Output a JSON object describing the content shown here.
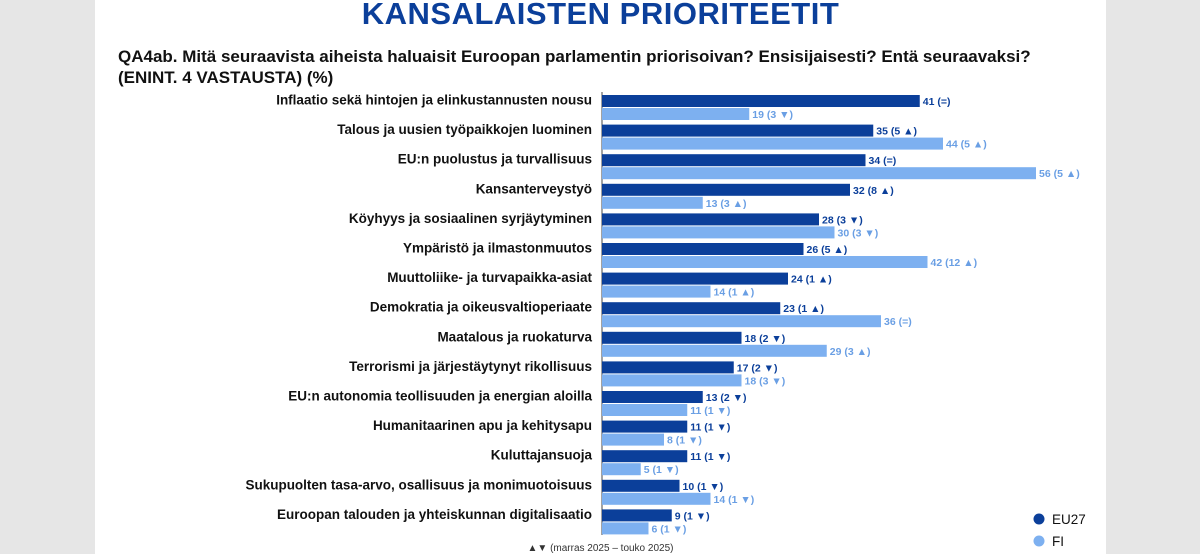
{
  "page": {
    "title": "KANSALAISTEN PRIORITEETIT",
    "question": "QA4ab. Mitä seuraavista aiheista haluaisit Euroopan parlamentin priorisoivan? Ensisijaisesti? Entä seuraavaksi? (ENINT. 4 VASTAUSTA) (%)",
    "footnote": "▲▼ (marras 2025 – touko 2025)"
  },
  "colors": {
    "eu27": "#0b3f9a",
    "fi": "#7db0f0",
    "fi_label": "#6a9fe4"
  },
  "chart_data": {
    "type": "bar",
    "orientation": "horizontal",
    "xlim": [
      0,
      56
    ],
    "categories": [
      "Inflaatio sekä hintojen ja elinkustannusten nousu",
      "Talous ja uusien työpaikkojen luominen",
      "EU:n puolustus ja turvallisuus",
      "Kansanterveystyö",
      "Köyhyys ja sosiaalinen syrjäytyminen",
      "Ympäristö ja ilmastonmuutos",
      "Muuttoliike- ja turvapaikka-asiat",
      "Demokratia ja oikeusvaltioperiaate",
      "Maatalous ja ruokaturva",
      "Terrorismi ja järjestäytynyt rikollisuus",
      "EU:n autonomia teollisuuden ja energian aloilla",
      "Humanitaarinen apu ja kehitysapu",
      "Kuluttajansuoja",
      "Sukupuolten tasa-arvo, osallisuus ja monimuotoisuus",
      "Euroopan talouden ja yhteiskunnan digitalisaatio"
    ],
    "series": [
      {
        "name": "EU27",
        "values": [
          41,
          35,
          34,
          32,
          28,
          26,
          24,
          23,
          18,
          17,
          13,
          11,
          11,
          10,
          9
        ],
        "labels": [
          "41 (=)",
          "35 (5 ▲)",
          "34 (=)",
          "32 (8 ▲)",
          "28 (3 ▼)",
          "26 (5 ▲)",
          "24 (1 ▲)",
          "23 (1 ▲)",
          "18 (2 ▼)",
          "17 (2 ▼)",
          "13 (2 ▼)",
          "11 (1 ▼)",
          "11 (1 ▼)",
          "10 (1 ▼)",
          "9 (1 ▼)"
        ]
      },
      {
        "name": "FI",
        "values": [
          19,
          44,
          56,
          13,
          30,
          42,
          14,
          36,
          29,
          18,
          11,
          8,
          5,
          14,
          6
        ],
        "labels": [
          "19 (3 ▼)",
          "44 (5 ▲)",
          "56 (5 ▲)",
          "13 (3 ▲)",
          "30 (3 ▼)",
          "42 (12 ▲)",
          "14 (1 ▲)",
          "36 (=)",
          "29 (3 ▲)",
          "18 (3 ▼)",
          "11 (1 ▼)",
          "8 (1 ▼)",
          "5 (1 ▼)",
          "14 (1 ▼)",
          "6 (1 ▼)"
        ]
      }
    ],
    "legend_position": "bottom-right",
    "grid": false
  }
}
